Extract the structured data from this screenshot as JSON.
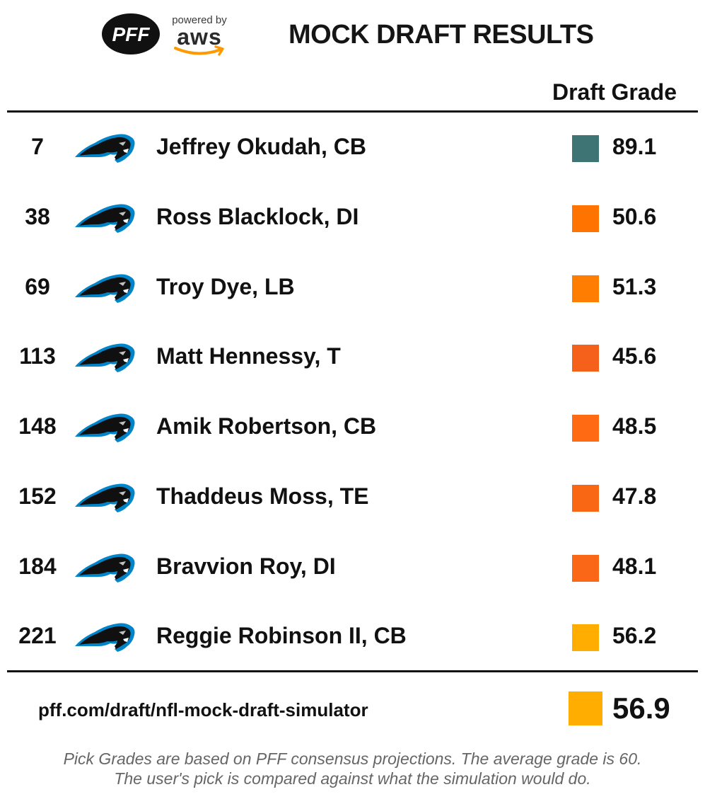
{
  "header": {
    "pff_logo_text": "PFF",
    "aws_powered": "powered by",
    "aws_text": "aws",
    "title": "MOCK DRAFT RESULTS",
    "grade_column": "Draft Grade"
  },
  "team": {
    "logo_icon": "panthers-logo-icon",
    "colors": {
      "body": "#101010",
      "accent": "#0085ca",
      "eye": "#bfc0bf"
    }
  },
  "picks": [
    {
      "pick": "7",
      "player": "Jeffrey Okudah, CB",
      "grade": "89.1",
      "color": "#3e7474"
    },
    {
      "pick": "38",
      "player": "Ross Blacklock, DI",
      "grade": "50.6",
      "color": "#ff7300"
    },
    {
      "pick": "69",
      "player": "Troy Dye, LB",
      "grade": "51.3",
      "color": "#ff7d00"
    },
    {
      "pick": "113",
      "player": "Matt Hennessy, T",
      "grade": "45.6",
      "color": "#f5601a"
    },
    {
      "pick": "148",
      "player": "Amik Robertson, CB",
      "grade": "48.5",
      "color": "#ff6a12"
    },
    {
      "pick": "152",
      "player": "Thaddeus Moss, TE",
      "grade": "47.8",
      "color": "#f96614"
    },
    {
      "pick": "184",
      "player": "Bravvion Roy, DI",
      "grade": "48.1",
      "color": "#fa6716"
    },
    {
      "pick": "221",
      "player": "Reggie Robinson II, CB",
      "grade": "56.2",
      "color": "#ffad00"
    }
  ],
  "footer": {
    "url": "pff.com/draft/nfl-mock-draft-simulator",
    "overall_grade": "56.9",
    "overall_color": "#ffad00",
    "note_line1": "Pick Grades are based on PFF consensus projections. The average grade is 60.",
    "note_line2": "The user's pick is compared against what the simulation would do."
  }
}
